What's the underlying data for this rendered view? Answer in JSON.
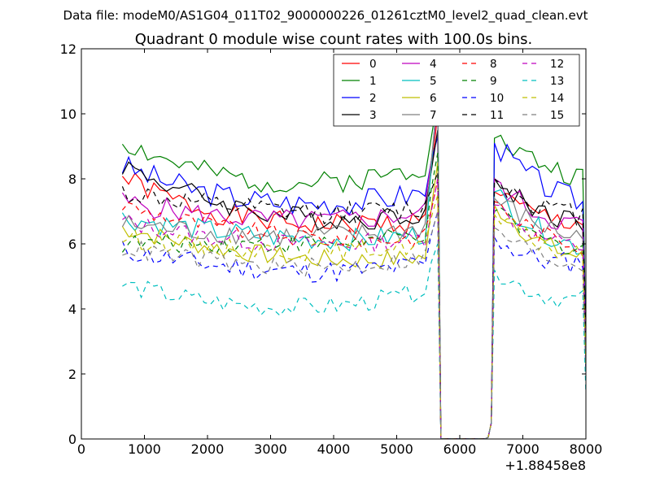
{
  "chart_data": {
    "type": "line",
    "suptitle": "Data file: modeM0/AS1G04_011T02_9000000226_01261cztM0_level2_quad_clean.evt",
    "title": "Quadrant 0 module wise count rates with 100.0s bins.",
    "xlabel": "",
    "ylabel": "",
    "xlim": [
      0,
      8000
    ],
    "ylim": [
      0,
      12
    ],
    "x_offset_label": "+1.88458e8",
    "xticks": [
      0,
      1000,
      2000,
      3000,
      4000,
      5000,
      6000,
      7000,
      8000
    ],
    "yticks": [
      0,
      2,
      4,
      6,
      8,
      10,
      12
    ],
    "legend_position": "upper-right",
    "x_segments": [
      {
        "start": 650,
        "end": 5650,
        "step": 100
      },
      {
        "start": 5700,
        "end": 6400,
        "step": 100
      },
      {
        "start": 6450,
        "end": 8000,
        "step": 100
      }
    ],
    "series": [
      {
        "name": "0",
        "color": "#ff0000",
        "dash": "solid",
        "base": 6.9,
        "amp": 0.35,
        "seed": 1,
        "b1": [
          8.05,
          6.4,
          6.5,
          6.7
        ],
        "peak": 10.0,
        "b2": [
          7.6,
          6.6,
          6.7,
          3.0
        ]
      },
      {
        "name": "1",
        "color": "#008000",
        "dash": "solid",
        "base": 7.8,
        "amp": 0.35,
        "seed": 2,
        "b1": [
          9.15,
          7.6,
          7.6,
          8.4
        ],
        "peak": 10.5,
        "b2": [
          9.25,
          8.4,
          8.0,
          3.0
        ]
      },
      {
        "name": "2",
        "color": "#0000ff",
        "dash": "solid",
        "base": 7.1,
        "amp": 0.4,
        "seed": 3,
        "b1": [
          8.4,
          7.1,
          7.0,
          7.6
        ],
        "peak": 9.3,
        "b2": [
          9.1,
          7.6,
          7.3,
          3.0
        ]
      },
      {
        "name": "3",
        "color": "#000000",
        "dash": "solid",
        "base": 6.6,
        "amp": 0.35,
        "seed": 4,
        "b1": [
          8.45,
          6.9,
          6.4,
          7.0
        ],
        "peak": 9.5,
        "b2": [
          8.0,
          6.8,
          6.7,
          2.8
        ]
      },
      {
        "name": "4",
        "color": "#bf00bf",
        "dash": "solid",
        "base": 6.6,
        "amp": 0.35,
        "seed": 5,
        "b1": [
          7.3,
          6.7,
          6.5,
          7.0
        ],
        "peak": 10.3,
        "b2": [
          8.0,
          6.6,
          6.6,
          2.6
        ]
      },
      {
        "name": "5",
        "color": "#00bfbf",
        "dash": "solid",
        "base": 6.3,
        "amp": 0.35,
        "seed": 6,
        "b1": [
          6.8,
          6.3,
          5.9,
          6.3
        ],
        "peak": 10.8,
        "b2": [
          7.6,
          6.2,
          5.9,
          2.4
        ]
      },
      {
        "name": "6",
        "color": "#bfbf00",
        "dash": "solid",
        "base": 5.6,
        "amp": 0.3,
        "seed": 7,
        "b1": [
          6.5,
          5.7,
          5.3,
          5.6
        ],
        "peak": 8.5,
        "b2": [
          7.2,
          5.8,
          5.6,
          2.2
        ]
      },
      {
        "name": "7",
        "color": "#808080",
        "dash": "solid",
        "base": 6.3,
        "amp": 0.35,
        "seed": 8,
        "b1": [
          6.6,
          6.3,
          6.0,
          6.5
        ],
        "peak": 10.6,
        "b2": [
          7.4,
          6.4,
          6.2,
          2.4
        ]
      },
      {
        "name": "8",
        "color": "#ff0000",
        "dash": "dashed",
        "base": 6.3,
        "amp": 0.3,
        "seed": 9,
        "b1": [
          7.2,
          6.3,
          6.0,
          6.2
        ],
        "peak": 8.0,
        "b2": [
          7.3,
          6.1,
          6.0,
          2.5
        ]
      },
      {
        "name": "9",
        "color": "#008000",
        "dash": "dashed",
        "base": 6.0,
        "amp": 0.3,
        "seed": 10,
        "b1": [
          6.0,
          6.1,
          5.8,
          6.3
        ],
        "peak": 8.8,
        "b2": [
          7.0,
          5.9,
          5.9,
          2.3
        ]
      },
      {
        "name": "10",
        "color": "#0000ff",
        "dash": "dashed",
        "base": 4.9,
        "amp": 0.35,
        "seed": 11,
        "b1": [
          5.8,
          5.2,
          4.9,
          5.4
        ],
        "peak": 7.0,
        "b2": [
          6.2,
          5.2,
          5.5,
          2.0
        ]
      },
      {
        "name": "11",
        "color": "#000000",
        "dash": "dashed",
        "base": 6.9,
        "amp": 0.35,
        "seed": 12,
        "b1": [
          7.6,
          7.0,
          6.8,
          7.1
        ],
        "peak": 8.2,
        "b2": [
          8.0,
          7.0,
          6.9,
          2.9
        ]
      },
      {
        "name": "12",
        "color": "#bf00bf",
        "dash": "dashed",
        "base": 6.0,
        "amp": 0.3,
        "seed": 13,
        "b1": [
          6.7,
          6.0,
          5.8,
          6.2
        ],
        "peak": 8.0,
        "b2": [
          7.2,
          6.0,
          5.9,
          2.4
        ]
      },
      {
        "name": "13",
        "color": "#00bfbf",
        "dash": "dashed",
        "base": 3.9,
        "amp": 0.3,
        "seed": 14,
        "b1": [
          4.75,
          4.0,
          3.7,
          4.6
        ],
        "peak": 6.0,
        "b2": [
          5.2,
          4.2,
          4.3,
          1.4
        ]
      },
      {
        "name": "14",
        "color": "#bfbf00",
        "dash": "dashed",
        "base": 5.8,
        "amp": 0.3,
        "seed": 15,
        "b1": [
          6.2,
          5.8,
          5.6,
          6.0
        ],
        "peak": 7.5,
        "b2": [
          6.9,
          5.8,
          5.6,
          2.3
        ]
      },
      {
        "name": "15",
        "color": "#808080",
        "dash": "dashed",
        "base": 5.3,
        "amp": 0.3,
        "seed": 16,
        "b1": [
          5.9,
          5.3,
          5.0,
          5.6
        ],
        "peak": 7.0,
        "b2": [
          6.5,
          5.4,
          5.4,
          2.1
        ]
      }
    ]
  }
}
